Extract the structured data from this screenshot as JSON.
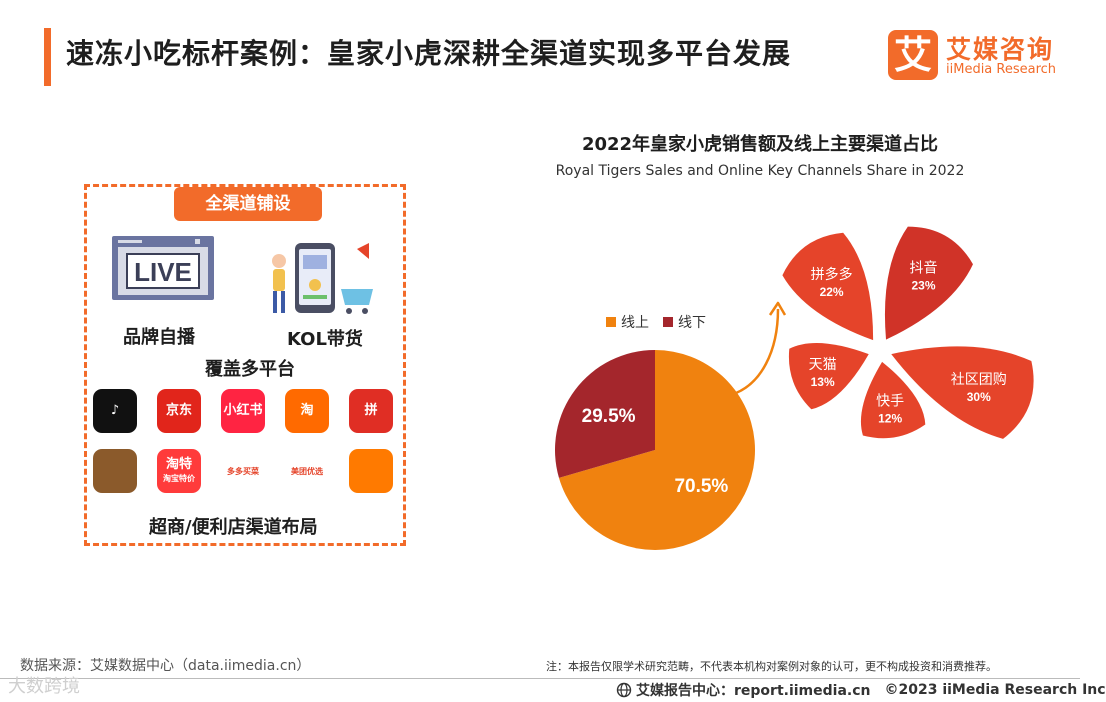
{
  "header": {
    "title": "速冻小吃标杆案例：皇家小虎深耕全渠道实现多平台发展",
    "logo_cn": "艾媒咨询",
    "logo_en": "iiMedia Research",
    "logo_mark": "艾",
    "accent_color": "#f26b2a"
  },
  "channels": {
    "box_title": "全渠道铺设",
    "live_icon_text": "LIVE",
    "brand_live_label": "品牌自播",
    "kol_label": "KOL带货",
    "platforms_label": "覆盖多平台",
    "retail_label": "超商/便利店渠道布局",
    "apps_row1": [
      {
        "icon": "douyin-icon",
        "text": "♪",
        "bg": "#111111"
      },
      {
        "icon": "jd-icon",
        "text": "京东",
        "bg": "#e1251b"
      },
      {
        "icon": "xiaohongshu-icon",
        "text": "小红书",
        "bg": "#ff2442"
      },
      {
        "icon": "taobao-icon",
        "text": "淘",
        "bg": "#ff6a00"
      },
      {
        "icon": "pinduoduo-icon",
        "text": "拼",
        "bg": "#e02e24"
      }
    ],
    "apps_row2": [
      {
        "icon": "haoshi-icon",
        "text": "",
        "bg": "#8b5a2b"
      },
      {
        "icon": "taote-icon",
        "text": "淘特",
        "sub": "淘宝特价",
        "bg": "#ff3b3b"
      },
      {
        "icon": "duoduo-maicai-icon",
        "text": "",
        "sub": "多多买菜",
        "bg": "#ffffff"
      },
      {
        "icon": "meituan-youxuan-icon",
        "text": "",
        "sub": "美团优选",
        "bg": "#ffffff"
      },
      {
        "icon": "kuaishou-icon",
        "text": "",
        "bg": "#ff7a00"
      }
    ]
  },
  "chart_data": [
    {
      "type": "pie",
      "title": "2022年皇家小虎销售额及线上主要渠道占比",
      "subtitle": "Royal Tigers Sales and Online Key Channels Share in 2022",
      "categories": [
        "线上",
        "线下"
      ],
      "values": [
        70.5,
        29.5
      ],
      "value_labels": [
        "70.5%",
        "29.5%"
      ],
      "colors": [
        "#f0820f",
        "#a4262c"
      ],
      "legend_position": "top-left"
    },
    {
      "type": "pie",
      "categories": [
        "拼多多",
        "抖音",
        "社区团购",
        "快手",
        "天猫"
      ],
      "values": [
        22,
        23,
        30,
        12,
        13
      ],
      "value_labels": [
        "22%",
        "23%",
        "30%",
        "12%",
        "13%"
      ],
      "colors": [
        "#e5442a",
        "#d03328",
        "#e5442a",
        "#e5442a",
        "#e5442a"
      ]
    }
  ],
  "footer": {
    "source": "数据来源：艾媒数据中心（data.iimedia.cn）",
    "note": "注：本报告仅限学术研究范畴，不代表本机构对案例对象的认可，更不构成投资和消费推荐。",
    "report_center": "艾媒报告中心：report.iimedia.cn",
    "copyright": "©2023  iiMedia Research  Inc",
    "watermark": "大数跨境"
  }
}
